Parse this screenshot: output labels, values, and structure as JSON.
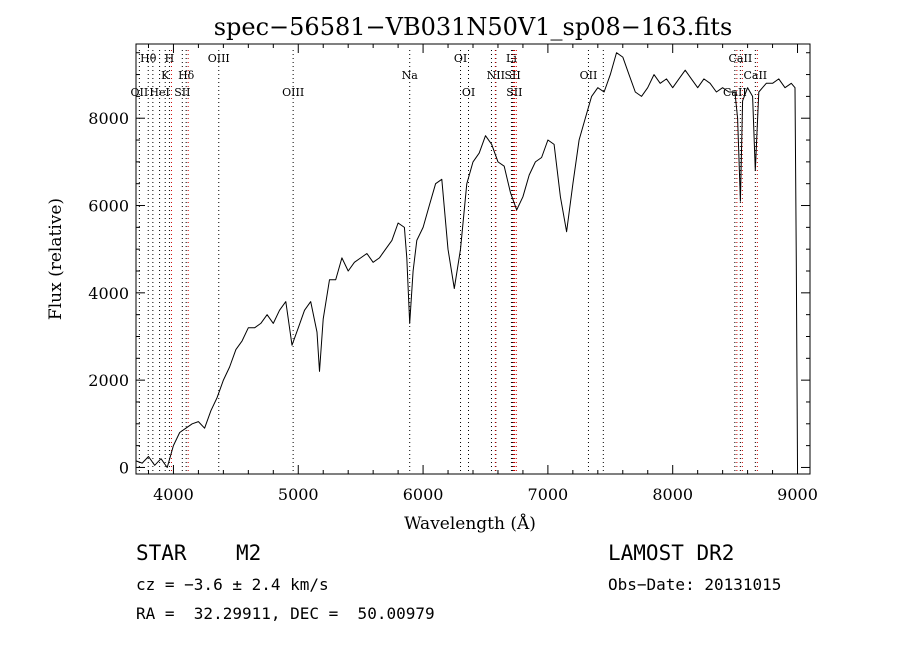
{
  "chart_data": {
    "type": "line",
    "title": "spec−56581−VB031N50V1_sp08−163.fits",
    "xlabel": "Wavelength (Å)",
    "ylabel": "Flux (relative)",
    "xlim": [
      3700,
      9100
    ],
    "ylim": [
      -150,
      9700
    ],
    "xticks": [
      4000,
      5000,
      6000,
      7000,
      8000,
      9000
    ],
    "xtick_labels": [
      "4000",
      "5000",
      "6000",
      "7000",
      "8000",
      "9000"
    ],
    "yticks": [
      0,
      2000,
      4000,
      6000,
      8000
    ],
    "ytick_labels": [
      "0",
      "2000",
      "4000",
      "6000",
      "8000"
    ],
    "grid": false,
    "spectrum": {
      "name": "flux",
      "x": [
        3700,
        3750,
        3800,
        3850,
        3900,
        3950,
        4000,
        4050,
        4100,
        4150,
        4200,
        4250,
        4300,
        4350,
        4400,
        4450,
        4500,
        4550,
        4600,
        4650,
        4700,
        4750,
        4800,
        4850,
        4900,
        4950,
        5000,
        5050,
        5100,
        5150,
        5170,
        5200,
        5250,
        5300,
        5350,
        5400,
        5450,
        5500,
        5550,
        5600,
        5650,
        5700,
        5750,
        5800,
        5850,
        5870,
        5893,
        5920,
        5950,
        6000,
        6050,
        6100,
        6150,
        6200,
        6250,
        6300,
        6350,
        6400,
        6450,
        6500,
        6550,
        6600,
        6650,
        6700,
        6750,
        6800,
        6850,
        6900,
        6950,
        7000,
        7050,
        7100,
        7150,
        7200,
        7250,
        7300,
        7350,
        7400,
        7450,
        7500,
        7550,
        7600,
        7650,
        7700,
        7750,
        7800,
        7850,
        7900,
        7950,
        8000,
        8050,
        8100,
        8150,
        8200,
        8250,
        8300,
        8350,
        8400,
        8450,
        8498,
        8520,
        8542,
        8560,
        8600,
        8640,
        8662,
        8690,
        8750,
        8800,
        8850,
        8900,
        8950,
        8980,
        8990,
        9000
      ],
      "y": [
        150,
        100,
        250,
        50,
        200,
        0,
        500,
        800,
        900,
        1000,
        1050,
        900,
        1300,
        1600,
        2000,
        2300,
        2700,
        2900,
        3200,
        3200,
        3300,
        3500,
        3300,
        3600,
        3800,
        2800,
        3200,
        3600,
        3800,
        3100,
        2200,
        3400,
        4300,
        4300,
        4800,
        4500,
        4700,
        4800,
        4900,
        4700,
        4800,
        5000,
        5200,
        5600,
        5500,
        4800,
        3300,
        4500,
        5200,
        5500,
        6000,
        6500,
        6600,
        5000,
        4100,
        5000,
        6500,
        7000,
        7200,
        7600,
        7400,
        7000,
        6900,
        6300,
        5900,
        6200,
        6700,
        7000,
        7100,
        7500,
        7400,
        6200,
        5400,
        6500,
        7500,
        8000,
        8500,
        8700,
        8600,
        9000,
        9500,
        9400,
        9000,
        8600,
        8500,
        8700,
        9000,
        8800,
        8900,
        8700,
        8900,
        9100,
        8900,
        8700,
        8900,
        8800,
        8600,
        8700,
        8600,
        8600,
        8000,
        6100,
        8400,
        8700,
        8500,
        6800,
        8600,
        8800,
        8800,
        8900,
        8700,
        8800,
        8700,
        4700,
        50
      ]
    },
    "line_marks": [
      {
        "label": "Hθ",
        "x": 3798,
        "row": 1,
        "color": "#000"
      },
      {
        "label": "OII",
        "x": 3727,
        "row": 3,
        "color": "#000"
      },
      {
        "label": "HeI",
        "x": 3889,
        "row": 3,
        "color": "#000"
      },
      {
        "label": "K",
        "x": 3934,
        "row": 2,
        "color": "#000"
      },
      {
        "label": "H",
        "x": 3968,
        "row": 1,
        "color": "#000"
      },
      {
        "label": "SII",
        "x": 4071,
        "row": 3,
        "color": "#000"
      },
      {
        "label": "Hδ",
        "x": 4102,
        "row": 2,
        "color": "#000"
      },
      {
        "label": "OIII",
        "x": 4363,
        "row": 1,
        "color": "#000"
      },
      {
        "label": "OIII",
        "x": 4959,
        "row": 3,
        "color": "#000"
      },
      {
        "label": "Na",
        "x": 5893,
        "row": 2,
        "color": "#000"
      },
      {
        "label": "OI",
        "x": 6300,
        "row": 1,
        "color": "#000"
      },
      {
        "label": "OI",
        "x": 6364,
        "row": 3,
        "color": "#000"
      },
      {
        "label": "NII",
        "x": 6583,
        "row": 2,
        "color": "#000"
      },
      {
        "label": "Li",
        "x": 6708,
        "row": 1,
        "color": "#000"
      },
      {
        "label": "SII",
        "x": 6717,
        "row": 2,
        "color": "#000"
      },
      {
        "label": "SII",
        "x": 6731,
        "row": 3,
        "color": "#000"
      },
      {
        "label": "OII",
        "x": 7325,
        "row": 2,
        "color": "#000"
      },
      {
        "label": "CaII",
        "x": 8498,
        "row": 3,
        "color": "#000"
      },
      {
        "label": "CaII",
        "x": 8542,
        "row": 1,
        "color": "#000"
      },
      {
        "label": "CaII",
        "x": 8662,
        "row": 2,
        "color": "#000"
      },
      {
        "label": "",
        "x": 3835,
        "row": 0,
        "color": "#000"
      },
      {
        "label": "",
        "x": 6548,
        "row": 0,
        "color": "#000"
      },
      {
        "label": "",
        "x": 7444,
        "row": 0,
        "color": "#000"
      }
    ],
    "absorption_marks": [
      3968,
      4102,
      6563,
      6708,
      6717,
      6731,
      8498,
      8542,
      8662
    ]
  },
  "info": {
    "object_class": "STAR",
    "subclass": "M2",
    "survey": "LAMOST DR2",
    "redshift": "cz = −3.6 ± 2.4 km/s",
    "obs_date": "Obs−Date: 20131015",
    "coords": "RA =  32.29911, DEC =  50.00979"
  },
  "colors": {
    "line": "#000000",
    "emission_mark": "#000000",
    "absorption_mark": "#cc0000"
  }
}
